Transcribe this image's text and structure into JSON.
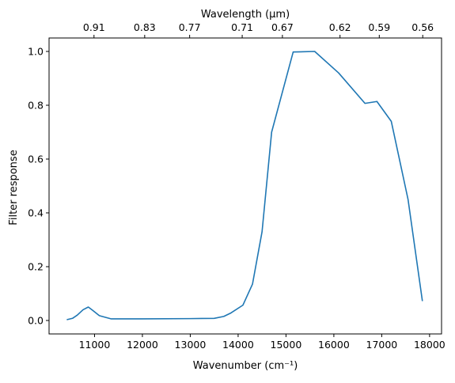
{
  "chart_data": {
    "type": "line",
    "title": "",
    "xlabel": "Wavenumber (cm⁻¹)",
    "ylabel": "Filter response",
    "top_axis_label": "Wavelength (μm)",
    "xlim": [
      10050,
      18250
    ],
    "ylim": [
      -0.05,
      1.05
    ],
    "x_ticks": [
      11000,
      12000,
      13000,
      14000,
      15000,
      16000,
      17000,
      18000
    ],
    "x_tick_labels": [
      "11000",
      "12000",
      "13000",
      "14000",
      "15000",
      "16000",
      "17000",
      "18000"
    ],
    "y_ticks": [
      0.0,
      0.2,
      0.4,
      0.6,
      0.8,
      1.0
    ],
    "y_tick_labels": [
      "0.0",
      "0.2",
      "0.4",
      "0.6",
      "0.8",
      "1.0"
    ],
    "top_ticks_wavenumber": [
      10989,
      12048,
      12987,
      14085,
      14925,
      16129,
      16949,
      17857
    ],
    "top_tick_labels": [
      "0.91",
      "0.83",
      "0.77",
      "0.71",
      "0.67",
      "0.62",
      "0.59",
      "0.56"
    ],
    "grid": false,
    "series_color": "#1f77b4",
    "series": [
      {
        "x": [
          10420,
          10540,
          10640,
          10760,
          10870,
          10960,
          11100,
          11350,
          12000,
          13000,
          13500,
          13700,
          13850,
          14100,
          14300,
          14500,
          14700,
          15150,
          15600,
          16100,
          16650,
          16900,
          17200,
          17550,
          17850
        ],
        "y": [
          0.003,
          0.008,
          0.02,
          0.04,
          0.05,
          0.038,
          0.018,
          0.006,
          0.006,
          0.007,
          0.008,
          0.015,
          0.028,
          0.057,
          0.135,
          0.33,
          0.7,
          0.998,
          1.0,
          0.92,
          0.807,
          0.814,
          0.74,
          0.45,
          0.072
        ]
      }
    ]
  }
}
